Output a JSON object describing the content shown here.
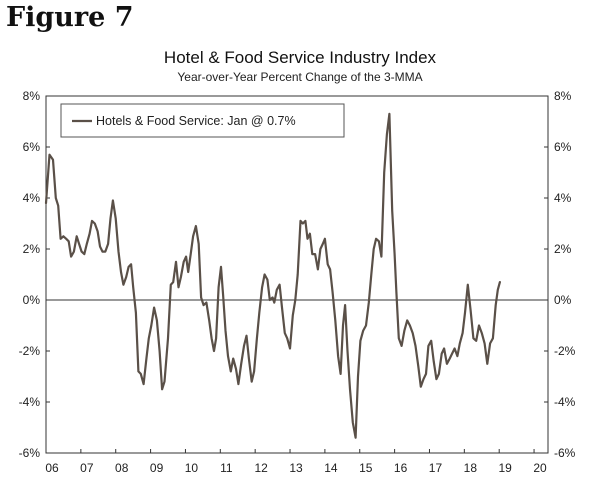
{
  "figure_label": "Figure 7",
  "chart_data": {
    "type": "line",
    "title": "Hotel & Food Service Industry Index",
    "subtitle": "Year-over-Year Percent Change of the 3-MMA",
    "xlabel": "",
    "ylabel": "",
    "ylim": [
      -6,
      8
    ],
    "xlim": [
      2006,
      2020.4
    ],
    "y_ticks": [
      -6,
      -4,
      -2,
      0,
      2,
      4,
      6,
      8
    ],
    "y_tick_labels": [
      "-6%",
      "-4%",
      "-2%",
      "0%",
      "2%",
      "4%",
      "6%",
      "8%"
    ],
    "x_ticks": [
      2006,
      2007,
      2008,
      2009,
      2010,
      2011,
      2012,
      2013,
      2014,
      2015,
      2016,
      2017,
      2018,
      2019,
      2020
    ],
    "x_tick_labels": [
      "06",
      "07",
      "08",
      "09",
      "10",
      "11",
      "12",
      "13",
      "14",
      "15",
      "16",
      "17",
      "18",
      "19",
      "20"
    ],
    "grid": false,
    "zero_line": true,
    "legend": {
      "position": "top-left",
      "entries": [
        "Hotels & Food Service: Jan @ 0.7%"
      ]
    },
    "line_color": "#5a5048",
    "series": [
      {
        "name": "Hotels & Food Service",
        "points": [
          [
            2006.0,
            3.8
          ],
          [
            2006.1,
            5.7
          ],
          [
            2006.2,
            5.5
          ],
          [
            2006.28,
            4.0
          ],
          [
            2006.35,
            3.7
          ],
          [
            2006.42,
            2.4
          ],
          [
            2006.5,
            2.5
          ],
          [
            2006.58,
            2.4
          ],
          [
            2006.65,
            2.3
          ],
          [
            2006.72,
            1.7
          ],
          [
            2006.8,
            1.9
          ],
          [
            2006.88,
            2.5
          ],
          [
            2006.95,
            2.2
          ],
          [
            2007.02,
            1.9
          ],
          [
            2007.1,
            1.8
          ],
          [
            2007.17,
            2.2
          ],
          [
            2007.25,
            2.6
          ],
          [
            2007.32,
            3.1
          ],
          [
            2007.4,
            3.0
          ],
          [
            2007.48,
            2.7
          ],
          [
            2007.55,
            2.1
          ],
          [
            2007.62,
            1.9
          ],
          [
            2007.7,
            1.9
          ],
          [
            2007.78,
            2.2
          ],
          [
            2007.85,
            3.2
          ],
          [
            2007.92,
            3.9
          ],
          [
            2008.0,
            3.2
          ],
          [
            2008.08,
            1.9
          ],
          [
            2008.15,
            1.1
          ],
          [
            2008.22,
            0.6
          ],
          [
            2008.3,
            0.9
          ],
          [
            2008.37,
            1.3
          ],
          [
            2008.44,
            1.4
          ],
          [
            2008.5,
            0.5
          ],
          [
            2008.58,
            -0.5
          ],
          [
            2008.65,
            -2.8
          ],
          [
            2008.72,
            -2.9
          ],
          [
            2008.8,
            -3.3
          ],
          [
            2008.88,
            -2.3
          ],
          [
            2008.95,
            -1.5
          ],
          [
            2009.02,
            -1.0
          ],
          [
            2009.1,
            -0.3
          ],
          [
            2009.18,
            -0.8
          ],
          [
            2009.26,
            -2.0
          ],
          [
            2009.33,
            -3.5
          ],
          [
            2009.4,
            -3.2
          ],
          [
            2009.5,
            -1.5
          ],
          [
            2009.58,
            0.6
          ],
          [
            2009.65,
            0.7
          ],
          [
            2009.73,
            1.5
          ],
          [
            2009.8,
            0.5
          ],
          [
            2009.87,
            0.9
          ],
          [
            2009.95,
            1.5
          ],
          [
            2010.02,
            1.7
          ],
          [
            2010.08,
            1.1
          ],
          [
            2010.15,
            1.8
          ],
          [
            2010.22,
            2.5
          ],
          [
            2010.3,
            2.9
          ],
          [
            2010.38,
            2.2
          ],
          [
            2010.45,
            0.1
          ],
          [
            2010.52,
            -0.2
          ],
          [
            2010.6,
            -0.1
          ],
          [
            2010.68,
            -0.8
          ],
          [
            2010.75,
            -1.5
          ],
          [
            2010.82,
            -2.0
          ],
          [
            2010.88,
            -1.5
          ],
          [
            2010.95,
            0.5
          ],
          [
            2011.02,
            1.3
          ],
          [
            2011.08,
            0.2
          ],
          [
            2011.15,
            -1.2
          ],
          [
            2011.22,
            -2.2
          ],
          [
            2011.3,
            -2.8
          ],
          [
            2011.37,
            -2.3
          ],
          [
            2011.45,
            -2.7
          ],
          [
            2011.52,
            -3.3
          ],
          [
            2011.6,
            -2.5
          ],
          [
            2011.68,
            -1.8
          ],
          [
            2011.75,
            -1.4
          ],
          [
            2011.82,
            -2.3
          ],
          [
            2011.9,
            -3.2
          ],
          [
            2011.97,
            -2.8
          ],
          [
            2012.05,
            -1.5
          ],
          [
            2012.12,
            -0.5
          ],
          [
            2012.2,
            0.5
          ],
          [
            2012.27,
            1.0
          ],
          [
            2012.35,
            0.8
          ],
          [
            2012.42,
            0.0
          ],
          [
            2012.5,
            0.1
          ],
          [
            2012.55,
            -0.1
          ],
          [
            2012.62,
            0.4
          ],
          [
            2012.7,
            0.6
          ],
          [
            2012.77,
            -0.3
          ],
          [
            2012.85,
            -1.3
          ],
          [
            2012.92,
            -1.5
          ],
          [
            2013.0,
            -1.9
          ],
          [
            2013.08,
            -0.6
          ],
          [
            2013.15,
            0.0
          ],
          [
            2013.22,
            1.0
          ],
          [
            2013.3,
            3.1
          ],
          [
            2013.37,
            3.0
          ],
          [
            2013.44,
            3.1
          ],
          [
            2013.5,
            2.4
          ],
          [
            2013.57,
            2.6
          ],
          [
            2013.64,
            1.8
          ],
          [
            2013.72,
            1.8
          ],
          [
            2013.8,
            1.2
          ],
          [
            2013.87,
            2.0
          ],
          [
            2013.94,
            2.2
          ],
          [
            2014.0,
            2.4
          ],
          [
            2014.08,
            1.4
          ],
          [
            2014.15,
            1.2
          ],
          [
            2014.22,
            0.3
          ],
          [
            2014.3,
            -0.8
          ],
          [
            2014.38,
            -2.2
          ],
          [
            2014.45,
            -2.9
          ],
          [
            2014.52,
            -1.0
          ],
          [
            2014.58,
            -0.2
          ],
          [
            2014.65,
            -2.0
          ],
          [
            2014.72,
            -3.5
          ],
          [
            2014.8,
            -4.8
          ],
          [
            2014.88,
            -5.4
          ],
          [
            2014.95,
            -3.0
          ],
          [
            2015.02,
            -1.6
          ],
          [
            2015.1,
            -1.2
          ],
          [
            2015.18,
            -1.0
          ],
          [
            2015.26,
            -0.1
          ],
          [
            2015.33,
            1.0
          ],
          [
            2015.4,
            2.0
          ],
          [
            2015.47,
            2.4
          ],
          [
            2015.55,
            2.3
          ],
          [
            2015.62,
            1.7
          ],
          [
            2015.7,
            5.0
          ],
          [
            2015.78,
            6.5
          ],
          [
            2015.85,
            7.3
          ],
          [
            2015.93,
            3.5
          ],
          [
            2016.0,
            1.8
          ],
          [
            2016.05,
            0.3
          ],
          [
            2016.12,
            -1.5
          ],
          [
            2016.2,
            -1.8
          ],
          [
            2016.28,
            -1.2
          ],
          [
            2016.36,
            -0.8
          ],
          [
            2016.44,
            -1.0
          ],
          [
            2016.52,
            -1.3
          ],
          [
            2016.6,
            -1.8
          ],
          [
            2016.68,
            -2.6
          ],
          [
            2016.75,
            -3.4
          ],
          [
            2016.83,
            -3.1
          ],
          [
            2016.9,
            -2.9
          ],
          [
            2016.97,
            -1.8
          ],
          [
            2017.05,
            -1.6
          ],
          [
            2017.12,
            -2.4
          ],
          [
            2017.2,
            -3.1
          ],
          [
            2017.27,
            -2.9
          ],
          [
            2017.35,
            -2.1
          ],
          [
            2017.42,
            -1.9
          ],
          [
            2017.5,
            -2.5
          ],
          [
            2017.58,
            -2.3
          ],
          [
            2017.65,
            -2.1
          ],
          [
            2017.72,
            -1.9
          ],
          [
            2017.8,
            -2.2
          ],
          [
            2017.87,
            -1.7
          ],
          [
            2017.95,
            -1.3
          ],
          [
            2018.02,
            -0.5
          ],
          [
            2018.1,
            0.6
          ],
          [
            2018.18,
            -0.4
          ],
          [
            2018.26,
            -1.5
          ],
          [
            2018.34,
            -1.6
          ],
          [
            2018.42,
            -1.0
          ],
          [
            2018.5,
            -1.3
          ],
          [
            2018.58,
            -1.7
          ],
          [
            2018.66,
            -2.5
          ],
          [
            2018.74,
            -1.7
          ],
          [
            2018.82,
            -1.5
          ],
          [
            2018.9,
            -0.2
          ],
          [
            2018.96,
            0.4
          ],
          [
            2019.02,
            0.7
          ]
        ]
      }
    ]
  }
}
